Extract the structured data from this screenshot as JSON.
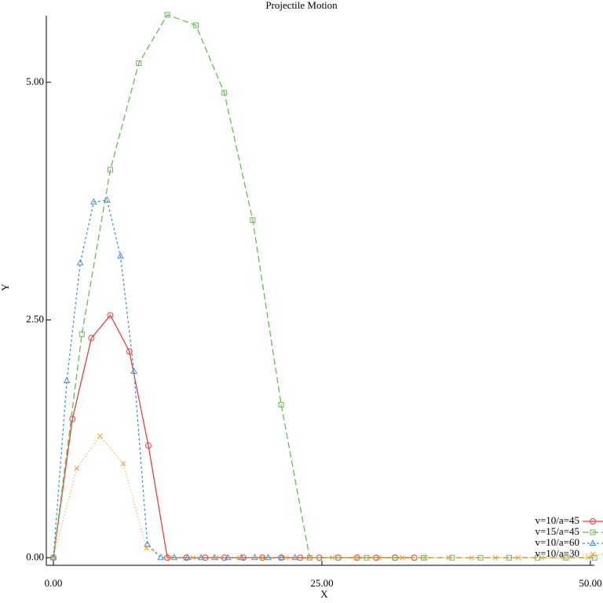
{
  "chart_data": {
    "type": "line",
    "title": "Projectile Motion",
    "x_label": "X",
    "y_label": "Y",
    "xlim": [
      -0.66,
      50.37
    ],
    "ylim": [
      -0.08,
      5.7
    ],
    "xticks": [
      {
        "value": 0,
        "label": "0.00"
      },
      {
        "value": 25,
        "label": "25.00"
      },
      {
        "value": 50,
        "label": "50.00"
      }
    ],
    "yticks": [
      {
        "value": 0,
        "label": "0.00"
      },
      {
        "value": 2.5,
        "label": "2.50"
      },
      {
        "value": 5,
        "label": "5.00"
      }
    ],
    "legend": "lower right",
    "series": [
      {
        "name": "v=10/a=45",
        "color": "#e8413c",
        "dash": "none",
        "marker": "circle",
        "x": [
          0,
          1.77,
          3.54,
          5.3,
          7.07,
          8.84,
          10.61,
          12.37,
          14.14,
          15.91,
          17.68,
          19.45,
          21.21,
          22.98,
          24.75,
          26.52,
          28.28,
          30.05,
          31.82,
          33.59
        ],
        "values": [
          0,
          1.46,
          2.31,
          2.55,
          2.17,
          1.18,
          0,
          0,
          0,
          0,
          0,
          0,
          0,
          0,
          0,
          0,
          0,
          0,
          0,
          0
        ]
      },
      {
        "name": "v=15/a=45",
        "color": "#66bb55",
        "dash": "8,4",
        "marker": "square",
        "x": [
          0,
          2.65,
          5.3,
          7.95,
          10.61,
          13.26,
          15.91,
          18.56,
          21.21,
          23.86,
          26.52,
          29.17,
          31.82,
          34.47,
          37.12,
          39.77,
          42.43,
          45.08,
          47.73,
          50.38
        ],
        "values": [
          0,
          2.35,
          4.08,
          5.2,
          5.71,
          5.6,
          4.89,
          3.55,
          1.61,
          0,
          0,
          0,
          0,
          0,
          0,
          0,
          0,
          0,
          0,
          0
        ]
      },
      {
        "name": "v=10/a=60",
        "color": "#4a90d9",
        "dash": "3,3",
        "marker": "triangle",
        "x": [
          0,
          1.25,
          2.5,
          3.75,
          5,
          6.25,
          7.5,
          8.75,
          10,
          11.25,
          12.5,
          13.75,
          15,
          16.25,
          17.5,
          18.75,
          20,
          21.25,
          22.5
        ],
        "values": [
          0,
          1.86,
          3.1,
          3.74,
          3.76,
          3.17,
          1.96,
          0.14,
          0,
          0,
          0,
          0,
          0,
          0,
          0,
          0,
          0,
          0,
          0
        ]
      },
      {
        "name": "v=10/a=30",
        "color": "#f39c33",
        "dash": "1,3",
        "marker": "cross",
        "x": [
          0,
          2.17,
          4.33,
          6.5,
          8.66,
          10.83,
          12.99,
          15.16,
          17.32,
          19.49,
          21.65,
          23.82,
          25.98,
          28.15,
          30.31,
          32.48,
          34.64,
          36.81,
          38.97,
          41.14,
          43.3,
          45.47,
          47.63,
          49.8
        ],
        "values": [
          0,
          0.94,
          1.28,
          0.99,
          0.1,
          0,
          0,
          0,
          0,
          0,
          0,
          0,
          0,
          0,
          0,
          0,
          0,
          0,
          0,
          0,
          0,
          0,
          0,
          0
        ]
      }
    ]
  }
}
